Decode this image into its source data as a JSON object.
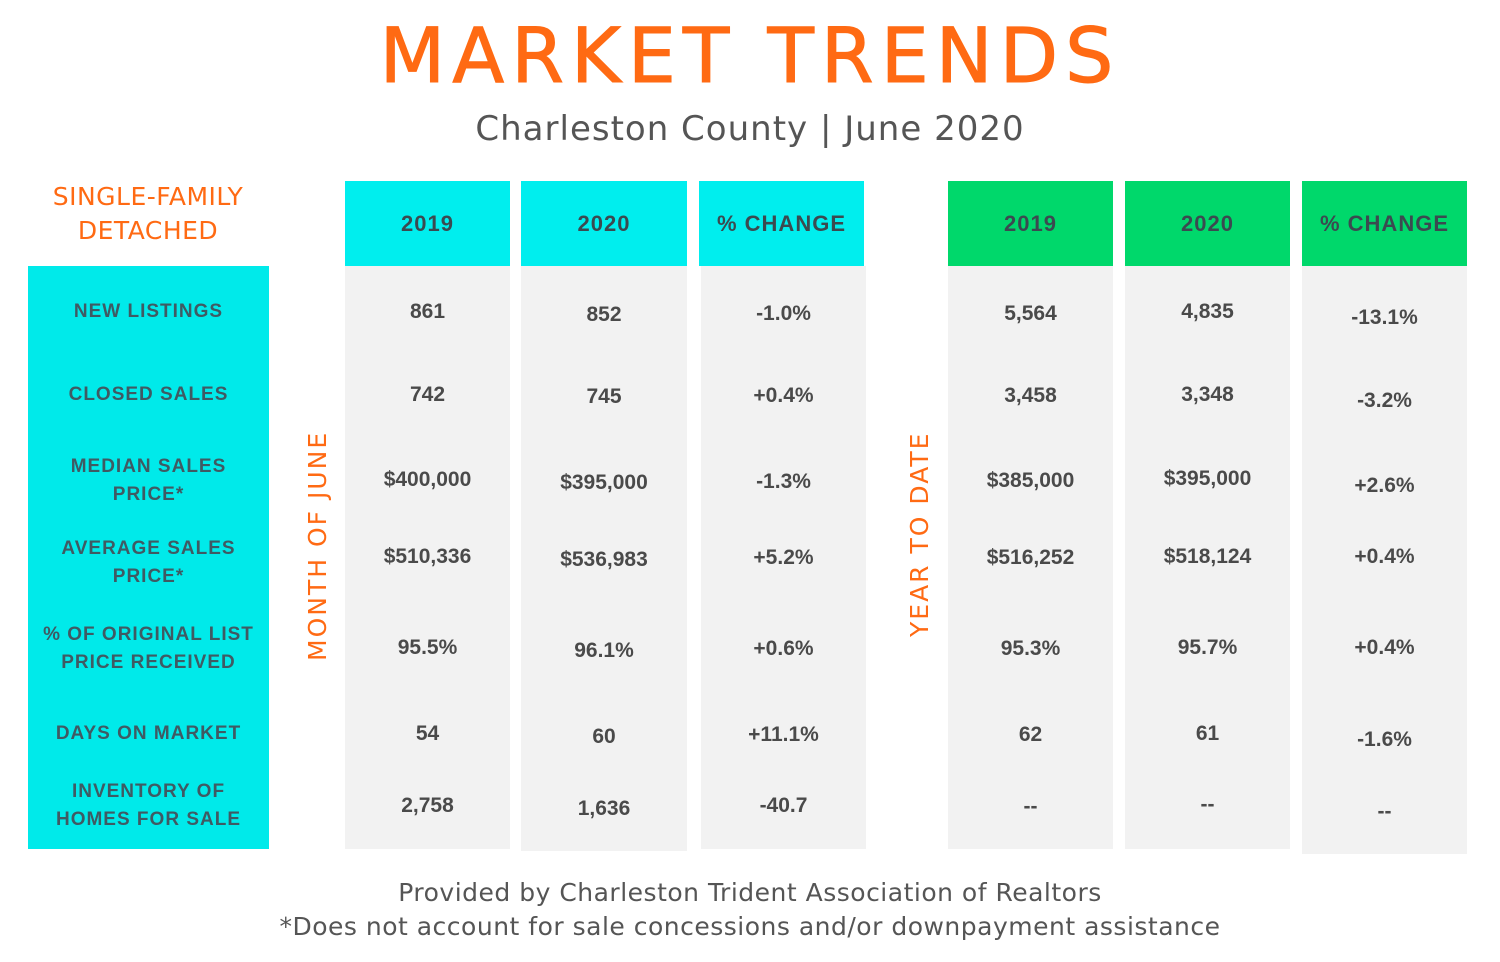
{
  "header": {
    "title": "MARKET TRENDS",
    "subtitle": "Charleston County | June 2020",
    "category_line1": "SINGLE-FAMILY",
    "category_line2": "DETACHED"
  },
  "sections": {
    "month_label": "MONTH OF JUNE",
    "ytd_label": "YEAR TO DATE"
  },
  "columns": {
    "month": [
      "2019",
      "2020",
      "% CHANGE"
    ],
    "ytd": [
      "2019",
      "2020",
      "% CHANGE"
    ]
  },
  "rows": [
    {
      "label1": "NEW LISTINGS",
      "label2": "",
      "m2019": "861",
      "m2020": "852",
      "mchg": "-1.0%",
      "y2019": "5,564",
      "y2020": "4,835",
      "ychg": "-13.1%"
    },
    {
      "label1": "CLOSED SALES",
      "label2": "",
      "m2019": "742",
      "m2020": "745",
      "mchg": "+0.4%",
      "y2019": "3,458",
      "y2020": "3,348",
      "ychg": "-3.2%"
    },
    {
      "label1": "MEDIAN SALES",
      "label2": "PRICE*",
      "m2019": "$400,000",
      "m2020": "$395,000",
      "mchg": "-1.3%",
      "y2019": "$385,000",
      "y2020": "$395,000",
      "ychg": "+2.6%"
    },
    {
      "label1": "AVERAGE SALES",
      "label2": "PRICE*",
      "m2019": "$510,336",
      "m2020": "$536,983",
      "mchg": "+5.2%",
      "y2019": "$516,252",
      "y2020": "$518,124",
      "ychg": "+0.4%"
    },
    {
      "label1": "% OF ORIGINAL LIST",
      "label2": "PRICE RECEIVED",
      "m2019": "95.5%",
      "m2020": "96.1%",
      "mchg": "+0.6%",
      "y2019": "95.3%",
      "y2020": "95.7%",
      "ychg": "+0.4%"
    },
    {
      "label1": "DAYS ON MARKET",
      "label2": "",
      "m2019": "54",
      "m2020": "60",
      "mchg": "+11.1%",
      "y2019": "62",
      "y2020": "61",
      "ychg": "-1.6%"
    },
    {
      "label1": "INVENTORY OF",
      "label2": "HOMES FOR SALE",
      "m2019": "2,758",
      "m2020": "1,636",
      "mchg": "-40.7",
      "y2019": "--",
      "y2020": "--",
      "ychg": "--"
    }
  ],
  "footer": {
    "line1": "Provided by Charleston Trident Association of Realtors",
    "line2": "*Does not account for sale concessions and/or downpayment assistance"
  },
  "colors": {
    "accent_orange": "#ff6a13",
    "month_header": "#00eeee",
    "ytd_header": "#00d86b",
    "label_column": "#00eaea"
  }
}
